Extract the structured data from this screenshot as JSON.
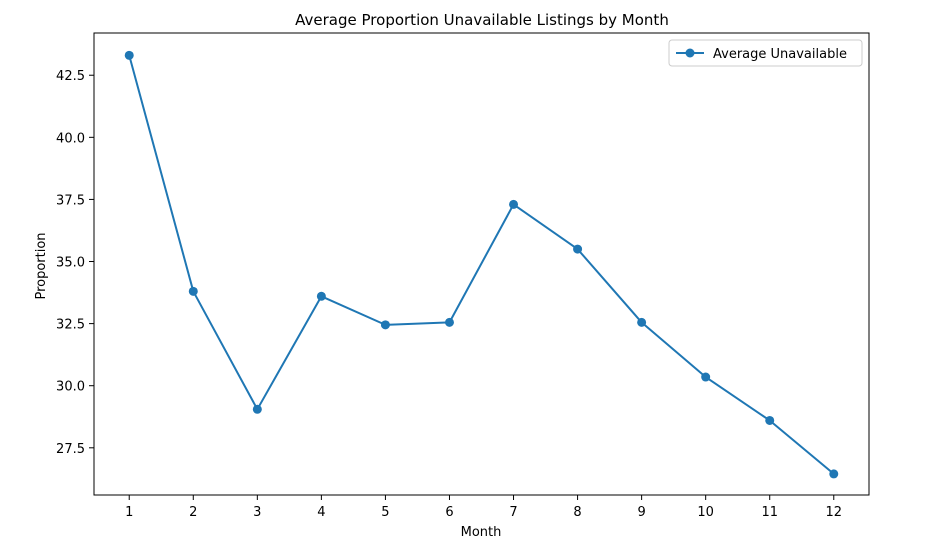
{
  "chart_data": {
    "type": "line",
    "title": "Average Proportion Unavailable Listings by Month",
    "xlabel": "Month",
    "ylabel": "Proportion",
    "x": [
      1,
      2,
      3,
      4,
      5,
      6,
      7,
      8,
      9,
      10,
      11,
      12
    ],
    "xticks": [
      "1",
      "2",
      "3",
      "4",
      "5",
      "6",
      "7",
      "8",
      "9",
      "10",
      "11",
      "12"
    ],
    "yticks": [
      "27.5",
      "30.0",
      "32.5",
      "35.0",
      "37.5",
      "40.0",
      "42.5"
    ],
    "ytick_values": [
      27.5,
      30.0,
      32.5,
      35.0,
      37.5,
      40.0,
      42.5
    ],
    "xlim": [
      0.45,
      12.55
    ],
    "ylim": [
      25.6,
      44.2
    ],
    "grid": false,
    "legend": "top-right",
    "series": [
      {
        "name": "Average Unavailable",
        "values": [
          43.3,
          33.8,
          29.05,
          33.6,
          32.45,
          32.55,
          37.3,
          35.5,
          32.55,
          30.35,
          28.6,
          26.45
        ],
        "color": "#1f77b4",
        "marker": "circle"
      }
    ]
  }
}
